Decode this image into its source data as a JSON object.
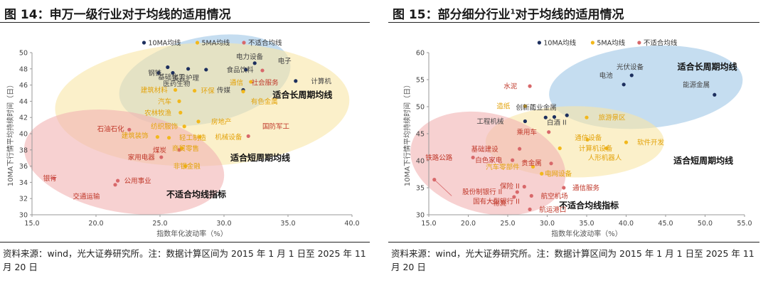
{
  "colors": {
    "long": "#1d2f5e",
    "short": "#f2b81c",
    "unsuitable": "#d8686a",
    "long_ellipse": "#9ec6e6",
    "short_ellipse": "#f8e6a6",
    "unsuitable_ellipse": "#f1b2b2",
    "label_long": "#1d2f5e",
    "label_short": "#e3a30c",
    "label_unsuitable": "#c0392b",
    "label_dark": "#444444"
  },
  "source_note": "资料来源：wind，光大证券研究所。注：数据计算区间为 2015 年 1 月 1 日至 2025 年 11 月 20 日",
  "chart_data": [
    {
      "type": "scatter",
      "title": "图 14：申万一级行业对于均线的适用情况",
      "xlabel": "指数年化波动率（%）",
      "ylabel": "10MA下行情平均持续时间（日）",
      "xlim": [
        15.0,
        40.0
      ],
      "ylim": [
        30,
        50
      ],
      "xticks": [
        15.0,
        20.0,
        25.0,
        30.0,
        35.0,
        40.0
      ],
      "yticks": [
        30,
        32,
        34,
        36,
        38,
        40,
        42,
        44,
        46,
        48,
        50
      ],
      "xtick_labels": [
        "15.0",
        "20.0",
        "25.0",
        "30.0",
        "35.0",
        "40.0"
      ],
      "ytick_labels": [
        "30",
        "32",
        "34",
        "36",
        "38",
        "40",
        "42",
        "44",
        "46",
        "48",
        "50"
      ],
      "legend": [
        "10MA均线",
        "5MA均线",
        "不适合均线"
      ],
      "regions": [
        {
          "label": "适合长周期均线",
          "category": "long",
          "cx": 28.5,
          "cy": 46.6,
          "rx": 6.8,
          "ry": 5.3,
          "rot": 12
        },
        {
          "label": "适合短周期均线",
          "category": "short",
          "cx": 28.3,
          "cy": 43.6,
          "rx": 11.5,
          "ry": 7.6,
          "rot": 2
        },
        {
          "label": "不适合均线指标",
          "category": "unsuitable",
          "cx": 22.2,
          "cy": 36.5,
          "rx": 7.9,
          "ry": 6.2,
          "rot": -10
        }
      ],
      "annotations": [
        {
          "text": "适合长周期均线",
          "x": 33.8,
          "y": 44.8
        },
        {
          "text": "适合短周期均线",
          "x": 30.5,
          "y": 37.0
        },
        {
          "text": "不适合均线指标",
          "x": 25.5,
          "y": 32.5
        }
      ],
      "points": [
        {
          "name": "电力设备",
          "x": 31.7,
          "y": 47.9,
          "category": "long",
          "lx": 32.0,
          "ly": 49.5
        },
        {
          "name": "电子",
          "x": 32.4,
          "y": 48.7,
          "category": "long",
          "lx": 34.2,
          "ly": 49.0
        },
        {
          "name": "计算机",
          "x": 35.6,
          "y": 46.5,
          "category": "long",
          "lx": 36.8,
          "ly": 46.5
        },
        {
          "name": "食品饮料",
          "x": 28.6,
          "y": 47.9,
          "category": "long",
          "lx": 30.2,
          "ly": 47.9
        },
        {
          "name": "传媒",
          "x": 31.5,
          "y": 45.4,
          "category": "long",
          "lx": 30.5,
          "ly": 45.4
        },
        {
          "name": "钢铁",
          "x": 24.9,
          "y": 47.5,
          "category": "long",
          "lx": 24.6,
          "ly": 47.5
        },
        {
          "name": "美容护理",
          "x": 27.2,
          "y": 48.0,
          "category": "long",
          "lx": 27.0,
          "ly": 46.9
        },
        {
          "name": "基础化工",
          "x": 25.6,
          "y": 48.2,
          "category": "long",
          "lx": 25.9,
          "ly": 47.0
        },
        {
          "name": "医药生物",
          "x": 26.0,
          "y": 47.5,
          "category": "long",
          "lx": 26.3,
          "ly": 46.2
        },
        {
          "name": "社会服务",
          "x": 33.0,
          "y": 47.8,
          "category": "unsuitable",
          "lx": 33.2,
          "ly": 46.3
        },
        {
          "name": "通信",
          "x": 32.1,
          "y": 46.4,
          "category": "short",
          "lx": 31.5,
          "ly": 46.3
        },
        {
          "name": "有色金属",
          "x": 31.5,
          "y": 45.2,
          "category": "short",
          "lx": 32.1,
          "ly": 44.0
        },
        {
          "name": "建筑材料",
          "x": 26.2,
          "y": 45.4,
          "category": "short",
          "lx": 25.6,
          "ly": 45.4
        },
        {
          "name": "环保",
          "x": 27.7,
          "y": 45.3,
          "category": "short",
          "lx": 28.2,
          "ly": 45.3
        },
        {
          "name": "汽车",
          "x": 26.5,
          "y": 44.0,
          "category": "short",
          "lx": 25.9,
          "ly": 44.0
        },
        {
          "name": "农林牧渔",
          "x": 26.6,
          "y": 42.6,
          "category": "short",
          "lx": 25.9,
          "ly": 42.6
        },
        {
          "name": "纺织服饰",
          "x": 26.9,
          "y": 40.9,
          "category": "short",
          "lx": 26.4,
          "ly": 40.9
        },
        {
          "name": "房地产",
          "x": 28.0,
          "y": 41.5,
          "category": "short",
          "lx": 29.0,
          "ly": 41.5
        },
        {
          "name": "建筑装饰",
          "x": 24.8,
          "y": 39.6,
          "category": "short",
          "lx": 24.1,
          "ly": 39.8
        },
        {
          "name": "轻工制造",
          "x": 25.7,
          "y": 39.5,
          "category": "short",
          "lx": 26.5,
          "ly": 39.5
        },
        {
          "name": "机械设备",
          "x": 28.1,
          "y": 39.6,
          "category": "short",
          "lx": 29.3,
          "ly": 39.6
        },
        {
          "name": "商贸零售",
          "x": 26.7,
          "y": 38.2,
          "category": "short",
          "lx": 27.0,
          "ly": 38.2
        },
        {
          "name": "非银金融",
          "x": 27.0,
          "y": 36.0,
          "category": "short",
          "lx": 27.1,
          "ly": 36.0
        },
        {
          "name": "国防军工",
          "x": 31.9,
          "y": 39.7,
          "category": "unsuitable",
          "lx": 33.0,
          "ly": 40.9
        },
        {
          "name": "石油石化",
          "x": 22.6,
          "y": 40.5,
          "category": "unsuitable",
          "lx": 22.2,
          "ly": 40.6
        },
        {
          "name": "煤炭",
          "x": 26.5,
          "y": 38.0,
          "category": "unsuitable",
          "lx": 25.5,
          "ly": 38.0
        },
        {
          "name": "家用电器",
          "x": 25.1,
          "y": 37.1,
          "category": "unsuitable",
          "lx": 24.6,
          "ly": 37.1
        },
        {
          "name": "银行",
          "x": 16.7,
          "y": 34.5,
          "category": "unsuitable",
          "lx": 16.4,
          "ly": 34.5
        },
        {
          "name": "公用事业",
          "x": 21.7,
          "y": 34.2,
          "category": "unsuitable",
          "lx": 22.2,
          "ly": 34.2
        },
        {
          "name": "交通运输",
          "x": 21.5,
          "y": 33.7,
          "category": "unsuitable",
          "lx": 20.3,
          "ly": 32.3
        }
      ]
    },
    {
      "type": "scatter",
      "title_main": "图 15：部分细分行业",
      "title_sup": "1",
      "title_tail": "对于均线的适用情况",
      "xlabel": "指数年化波动率（%）",
      "ylabel": "10MA下行情平均持续时间（日）",
      "xlim": [
        15.0,
        55.0
      ],
      "ylim": [
        30,
        60
      ],
      "xticks": [
        15.0,
        20.0,
        25.0,
        30.0,
        35.0,
        40.0,
        45.0,
        50.0,
        55.0
      ],
      "yticks": [
        30,
        35,
        40,
        45,
        50,
        55,
        60
      ],
      "xtick_labels": [
        "15.0",
        "20.0",
        "25.0",
        "30.0",
        "35.0",
        "40.0",
        "45.0",
        "50.0",
        "55.0"
      ],
      "ytick_labels": [
        "30",
        "35",
        "40",
        "45",
        "50",
        "55",
        "60"
      ],
      "legend": [
        "10MA均线",
        "5MA均线",
        "不适合均线"
      ],
      "regions": [
        {
          "label": "适合长周期均线",
          "category": "long",
          "cx": 42.5,
          "cy": 53.6,
          "rx": 12.3,
          "ry": 7.6,
          "rot": 5
        },
        {
          "label": "适合短周期均线",
          "category": "short",
          "cx": 33.5,
          "cy": 43.5,
          "rx": 11.3,
          "ry": 6.6,
          "rot": 0
        },
        {
          "label": "不适合均线指标",
          "category": "unsuitable",
          "cx": 22.5,
          "cy": 39.5,
          "rx": 10.0,
          "ry": 9.2,
          "rot": -14
        }
      ],
      "annotations": [
        {
          "text": "适合长周期均线",
          "x": 46.5,
          "y": 57.4
        },
        {
          "text": "适合短周期均线",
          "x": 46.0,
          "y": 40.0
        },
        {
          "text": "不适合均线指标",
          "x": 31.5,
          "y": 31.7
        }
      ],
      "points": [
        {
          "name": "光伏设备",
          "x": 40.7,
          "y": 55.8,
          "category": "long",
          "lx": 40.5,
          "ly": 57.4
        },
        {
          "name": "电池",
          "x": 39.7,
          "y": 54.1,
          "category": "long",
          "lx": 38.3,
          "ly": 55.8
        },
        {
          "name": "能源金属",
          "x": 51.2,
          "y": 52.2,
          "category": "long",
          "lx": 50.6,
          "ly": 54.1
        },
        {
          "name": "工业金属",
          "x": 32.5,
          "y": 48.4,
          "category": "long",
          "lx": 31.2,
          "ly": 49.9
        },
        {
          "name": "创新药",
          "x": 29.8,
          "y": 48.0,
          "category": "long",
          "lx": 28.6,
          "ly": 49.9
        },
        {
          "name": "工程机械",
          "x": 27.2,
          "y": 47.3,
          "category": "long",
          "lx": 24.5,
          "ly": 47.3
        },
        {
          "name": "白酒 II",
          "x": 30.9,
          "y": 48.1,
          "category": "long",
          "lx": 31.2,
          "ly": 47.1
        },
        {
          "name": "水泥",
          "x": 27.8,
          "y": 53.8,
          "category": "unsuitable",
          "lx": 26.2,
          "ly": 53.8
        },
        {
          "name": "造纸",
          "x": 27.2,
          "y": 50.1,
          "category": "short",
          "lx": 25.3,
          "ly": 50.1
        },
        {
          "name": "旅游景区",
          "x": 35.0,
          "y": 48.0,
          "category": "short",
          "lx": 36.5,
          "ly": 48.0
        },
        {
          "name": "乘用车",
          "x": 30.2,
          "y": 45.3,
          "category": "unsuitable",
          "lx": 28.7,
          "ly": 45.3
        },
        {
          "name": "通信设备",
          "x": 35.1,
          "y": 43.9,
          "category": "short",
          "lx": 35.2,
          "ly": 44.3
        },
        {
          "name": "软件开发",
          "x": 40.0,
          "y": 43.4,
          "category": "short",
          "lx": 41.4,
          "ly": 43.4
        },
        {
          "name": "计算机设备",
          "x": 31.6,
          "y": 42.3,
          "category": "short",
          "lx": 34.0,
          "ly": 42.3
        },
        {
          "name": "人形机器人",
          "x": 37.5,
          "y": 42.3,
          "category": "short",
          "lx": 37.3,
          "ly": 40.6
        },
        {
          "name": "基础建设",
          "x": 26.5,
          "y": 42.2,
          "category": "unsuitable",
          "lx": 23.8,
          "ly": 42.2
        },
        {
          "name": "铁路公路",
          "x": 20.6,
          "y": 40.6,
          "category": "unsuitable",
          "lx": 18.0,
          "ly": 40.6
        },
        {
          "name": "白色家电",
          "x": 25.6,
          "y": 40.1,
          "category": "unsuitable",
          "lx": 24.3,
          "ly": 40.1
        },
        {
          "name": "贵金属",
          "x": 30.5,
          "y": 39.5,
          "category": "unsuitable",
          "lx": 29.3,
          "ly": 39.6
        },
        {
          "name": "汽车零部件",
          "x": 28.2,
          "y": 38.9,
          "category": "short",
          "lx": 26.5,
          "ly": 38.9
        },
        {
          "name": "电网设备",
          "x": 29.3,
          "y": 37.6,
          "category": "short",
          "lx": 29.7,
          "ly": 37.6
        },
        {
          "name": "保险 II",
          "x": 27.1,
          "y": 35.2,
          "category": "unsuitable",
          "lx": 26.5,
          "ly": 35.3
        },
        {
          "name": "通信服务",
          "x": 32.1,
          "y": 35.0,
          "category": "unsuitable",
          "lx": 33.2,
          "ly": 35.0
        },
        {
          "name": "股份制银行 II",
          "x": 26.2,
          "y": 34.2,
          "category": "unsuitable",
          "lx": 24.3,
          "ly": 34.3
        },
        {
          "name": "航空机场",
          "x": 28.0,
          "y": 33.5,
          "category": "unsuitable",
          "lx": 29.2,
          "ly": 33.5
        },
        {
          "name": "物流",
          "x": 25.8,
          "y": 33.3,
          "category": "unsuitable",
          "lx": 24.8,
          "ly": 32.2
        },
        {
          "name": "航运港口",
          "x": 27.8,
          "y": 31.0,
          "category": "unsuitable",
          "lx": 29.0,
          "ly": 31.0
        },
        {
          "name": "国有大型银行 II",
          "x": 15.7,
          "y": 36.5,
          "category": "unsuitable",
          "lx": 20.6,
          "ly": 32.5
        }
      ]
    }
  ]
}
